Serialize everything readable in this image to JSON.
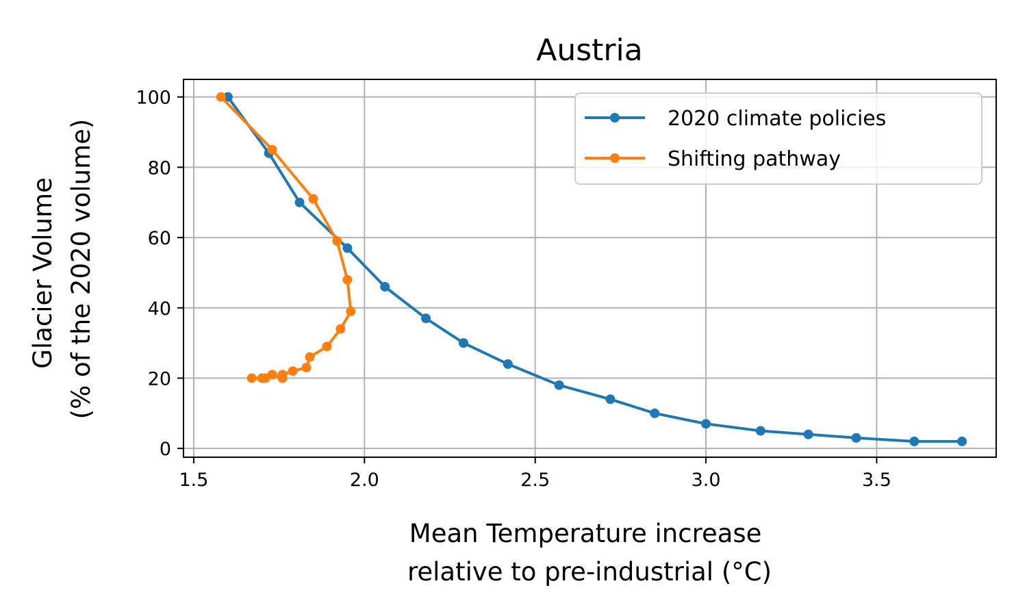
{
  "chart_data": {
    "type": "line",
    "title": "Austria",
    "xlabel": [
      "Mean Temperature increase",
      "relative to pre-industrial (°C)"
    ],
    "ylabel": [
      "Glacier Volume",
      "(% of the 2020 volume)"
    ],
    "xlim": [
      1.47,
      3.85
    ],
    "ylim": [
      -2.5,
      105
    ],
    "x_ticks": [
      1.5,
      2.0,
      2.5,
      3.0,
      3.5
    ],
    "x_tick_labels": [
      "1.5",
      "2.0",
      "2.5",
      "3.0",
      "3.5"
    ],
    "y_ticks": [
      0,
      20,
      40,
      60,
      80,
      100
    ],
    "y_tick_labels": [
      "0",
      "20",
      "40",
      "60",
      "80",
      "100"
    ],
    "grid": true,
    "legend_position": "top-right",
    "series": [
      {
        "name": "2020 climate policies",
        "color": "#1f77b4",
        "x": [
          1.6,
          1.72,
          1.81,
          1.95,
          2.06,
          2.18,
          2.29,
          2.42,
          2.57,
          2.72,
          2.85,
          3.0,
          3.16,
          3.3,
          3.44,
          3.61,
          3.75
        ],
        "y": [
          100,
          84,
          70,
          57,
          46,
          37,
          30,
          24,
          18,
          14,
          10,
          7,
          5,
          4,
          3,
          2,
          2
        ]
      },
      {
        "name": "Shifting pathway",
        "color": "#ff7f0e",
        "x": [
          1.58,
          1.73,
          1.85,
          1.92,
          1.95,
          1.96,
          1.93,
          1.89,
          1.84,
          1.83,
          1.79,
          1.76,
          1.76,
          1.73,
          1.71,
          1.7,
          1.67
        ],
        "y": [
          100,
          85,
          71,
          59,
          48,
          39,
          34,
          29,
          26,
          23,
          22,
          21,
          20,
          21,
          20,
          20,
          20
        ]
      }
    ]
  }
}
